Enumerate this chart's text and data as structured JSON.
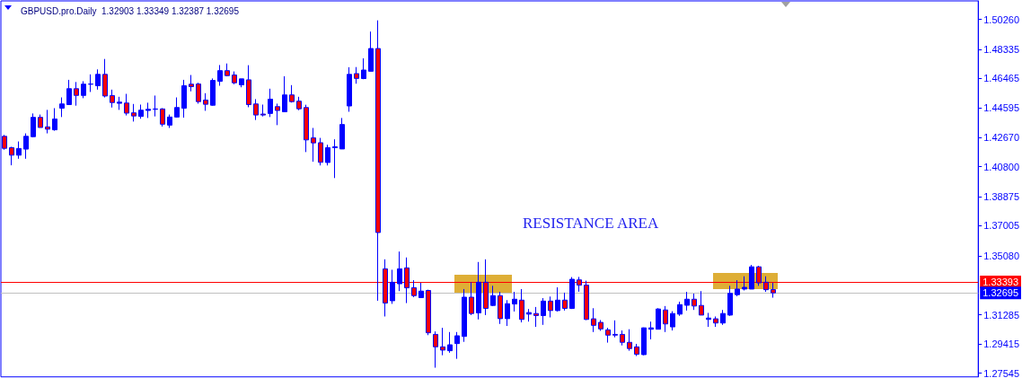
{
  "chart_data": {
    "type": "candlestick",
    "title": "GBPUSD.pro.Daily  1.32903 1.33349 1.32387 1.32695",
    "categories": [
      null,
      null,
      null,
      null,
      null,
      null,
      null,
      null,
      null,
      null,
      null,
      null,
      null,
      null,
      null,
      null,
      null,
      null,
      null,
      null,
      null,
      null,
      null,
      null,
      null,
      null,
      null,
      null,
      null,
      null,
      null,
      null,
      null,
      null,
      null,
      null,
      null,
      null,
      null,
      null,
      null,
      null,
      null,
      null,
      null,
      null,
      null,
      null,
      null,
      null,
      null,
      null,
      null,
      null,
      null,
      null,
      null,
      null,
      null,
      null,
      null,
      null,
      null,
      null,
      null,
      null,
      null,
      null,
      null,
      null,
      null,
      null,
      null,
      null,
      null,
      null,
      null,
      null,
      null,
      null,
      null,
      null,
      null,
      null,
      null,
      null,
      null,
      null,
      null,
      null,
      null,
      null,
      null,
      null,
      null,
      null,
      null,
      null,
      null,
      null,
      null,
      null,
      null,
      null,
      null,
      null,
      null,
      null,
      null,
      null,
      null,
      null,
      null,
      null,
      null,
      null,
      null,
      null,
      null,
      null,
      null,
      null,
      null,
      null,
      null,
      null,
      null,
      null,
      null,
      null,
      null,
      null,
      null,
      null,
      null,
      null
    ],
    "ohlc": [
      [
        1.4275,
        1.4284,
        1.4189,
        1.4198
      ],
      [
        1.4202,
        1.4208,
        1.4089,
        1.4154
      ],
      [
        1.4154,
        1.4242,
        1.4131,
        1.4197
      ],
      [
        1.4193,
        1.4294,
        1.4131,
        1.4275
      ],
      [
        1.4273,
        1.4422,
        1.4269,
        1.4397
      ],
      [
        1.4397,
        1.4415,
        1.4332,
        1.4332
      ],
      [
        1.4336,
        1.4445,
        1.4294,
        1.4321
      ],
      [
        1.4317,
        1.4456,
        1.4311,
        1.4386
      ],
      [
        1.4456,
        1.4525,
        1.4399,
        1.4483
      ],
      [
        1.4479,
        1.4638,
        1.4479,
        1.4581
      ],
      [
        1.4581,
        1.4624,
        1.4472,
        1.4538
      ],
      [
        1.4538,
        1.4629,
        1.452,
        1.461
      ],
      [
        1.461,
        1.4673,
        1.456,
        1.4611
      ],
      [
        1.46,
        1.4705,
        1.4575,
        1.4673
      ],
      [
        1.4673,
        1.4772,
        1.4525,
        1.4534
      ],
      [
        1.4537,
        1.4575,
        1.446,
        1.4492
      ],
      [
        1.4487,
        1.4529,
        1.4445,
        1.4495
      ],
      [
        1.4489,
        1.4548,
        1.4409,
        1.4424
      ],
      [
        1.4426,
        1.4483,
        1.437,
        1.4406
      ],
      [
        1.4403,
        1.4479,
        1.4388,
        1.4443
      ],
      [
        1.4441,
        1.4491,
        1.4393,
        1.4449
      ],
      [
        1.4449,
        1.4537,
        1.4403,
        1.4451
      ],
      [
        1.4451,
        1.4456,
        1.4338,
        1.4353
      ],
      [
        1.4347,
        1.4415,
        1.4329,
        1.4399
      ],
      [
        1.4399,
        1.4525,
        1.4395,
        1.446
      ],
      [
        1.4456,
        1.4638,
        1.4395,
        1.46
      ],
      [
        1.461,
        1.4669,
        1.4564,
        1.4594
      ],
      [
        1.4611,
        1.4619,
        1.4485,
        1.4498
      ],
      [
        1.4508,
        1.4552,
        1.4439,
        1.4481
      ],
      [
        1.4475,
        1.4647,
        1.4472,
        1.4634
      ],
      [
        1.4629,
        1.4733,
        1.46,
        1.4697
      ],
      [
        1.4697,
        1.4743,
        1.4661,
        1.4665
      ],
      [
        1.4669,
        1.4692,
        1.461,
        1.4619
      ],
      [
        1.4606,
        1.4644,
        1.459,
        1.4644
      ],
      [
        1.4638,
        1.4732,
        1.4462,
        1.4479
      ],
      [
        1.4483,
        1.4514,
        1.438,
        1.4412
      ],
      [
        1.4418,
        1.4479,
        1.4403,
        1.4412
      ],
      [
        1.4422,
        1.4581,
        1.4399,
        1.4514
      ],
      [
        1.4466,
        1.4485,
        1.4347,
        1.4441
      ],
      [
        1.4433,
        1.4661,
        1.4432,
        1.4541
      ],
      [
        1.4541,
        1.4604,
        1.4492,
        1.4498
      ],
      [
        1.4501,
        1.4529,
        1.4443,
        1.4452
      ],
      [
        1.446,
        1.4478,
        1.4174,
        1.4252
      ],
      [
        1.4265,
        1.4329,
        1.4112,
        1.4233
      ],
      [
        1.4234,
        1.4265,
        1.4088,
        1.4108
      ],
      [
        1.4107,
        1.4221,
        1.4088,
        1.4202
      ],
      [
        1.4202,
        1.4256,
        1.4007,
        1.4208
      ],
      [
        1.4194,
        1.4393,
        1.4194,
        1.4351
      ],
      [
        1.447,
        1.4719,
        1.4433,
        1.4673
      ],
      [
        1.4678,
        1.472,
        1.4613,
        1.4647
      ],
      [
        1.4646,
        1.4776,
        1.4642,
        1.4701
      ],
      [
        1.4693,
        1.4948,
        1.4693,
        1.4839
      ],
      [
        1.4839,
        1.502,
        1.3219,
        1.3657
      ],
      [
        1.3424,
        1.3485,
        1.3118,
        1.3204
      ],
      [
        1.3219,
        1.3418,
        1.3199,
        1.3338
      ],
      [
        1.3328,
        1.3535,
        1.3281,
        1.3424
      ],
      [
        1.343,
        1.3497,
        1.3204,
        1.3302
      ],
      [
        1.3303,
        1.3351,
        1.3242,
        1.3252
      ],
      [
        1.3239,
        1.3334,
        1.3239,
        1.3281
      ],
      [
        1.3285,
        1.329,
        1.2998,
        1.3013
      ],
      [
        1.3003,
        1.3022,
        1.2789,
        1.2923
      ],
      [
        1.2923,
        1.3045,
        1.2869,
        1.2902
      ],
      [
        1.2898,
        1.3018,
        1.2885,
        1.2936
      ],
      [
        1.2944,
        1.3018,
        1.2846,
        1.2994
      ],
      [
        1.299,
        1.3294,
        1.2955,
        1.3242
      ],
      [
        1.3242,
        1.3338,
        1.3127,
        1.3137
      ],
      [
        1.3141,
        1.3468,
        1.3099,
        1.3338
      ],
      [
        1.3338,
        1.3485,
        1.3127,
        1.317
      ],
      [
        1.3189,
        1.3315,
        1.3185,
        1.3252
      ],
      [
        1.3252,
        1.3276,
        1.307,
        1.3104
      ],
      [
        1.3104,
        1.3223,
        1.3057,
        1.32
      ],
      [
        1.3198,
        1.3276,
        1.315,
        1.3229
      ],
      [
        1.3223,
        1.3294,
        1.308,
        1.3099
      ],
      [
        1.3133,
        1.3166,
        1.3085,
        1.3143
      ],
      [
        1.3137,
        1.3179,
        1.3051,
        1.3124
      ],
      [
        1.3124,
        1.3236,
        1.3064,
        1.3217
      ],
      [
        1.3217,
        1.3246,
        1.3112,
        1.3156
      ],
      [
        1.3156,
        1.3305,
        1.315,
        1.3223
      ],
      [
        1.3223,
        1.3271,
        1.3156,
        1.317
      ],
      [
        1.317,
        1.3371,
        1.3166,
        1.3357
      ],
      [
        1.3353,
        1.3372,
        1.3277,
        1.3319
      ],
      [
        1.3319,
        1.3348,
        1.3095,
        1.3099
      ],
      [
        1.3103,
        1.3171,
        1.3018,
        1.3061
      ],
      [
        1.308,
        1.3095,
        1.3026,
        1.3038
      ],
      [
        1.3032,
        1.3045,
        1.295,
        1.2998
      ],
      [
        1.3003,
        1.3093,
        1.2984,
        1.2998
      ],
      [
        1.3003,
        1.3028,
        1.2932,
        1.2952
      ],
      [
        1.2952,
        1.3036,
        1.2898,
        1.2912
      ],
      [
        1.2923,
        1.2942,
        1.2864,
        1.2875
      ],
      [
        1.2873,
        1.3047,
        1.2869,
        1.3045
      ],
      [
        1.3036,
        1.3085,
        1.2971,
        1.3045
      ],
      [
        1.3036,
        1.3171,
        1.3036,
        1.3166
      ],
      [
        1.316,
        1.3185,
        1.3018,
        1.307
      ],
      [
        1.3051,
        1.3152,
        1.3028,
        1.3137
      ],
      [
        1.3133,
        1.3213,
        1.3122,
        1.3194
      ],
      [
        1.319,
        1.3276,
        1.3156,
        1.3229
      ],
      [
        1.3229,
        1.3265,
        1.316,
        1.3185
      ],
      [
        1.3189,
        1.3281,
        1.3127,
        1.3127
      ],
      [
        1.3099,
        1.3141,
        1.3051,
        1.3108
      ],
      [
        1.3103,
        1.3118,
        1.3051,
        1.3076
      ],
      [
        1.3076,
        1.316,
        1.3064,
        1.3137
      ],
      [
        1.3127,
        1.3315,
        1.3122,
        1.3267
      ],
      [
        1.3258,
        1.3351,
        1.3248,
        1.3294
      ],
      [
        1.3294,
        1.3376,
        1.3285,
        1.3305
      ],
      [
        1.3294,
        1.3449,
        1.3294,
        1.3437
      ],
      [
        1.3437,
        1.3443,
        1.3315,
        1.3334
      ],
      [
        1.3338,
        1.3376,
        1.3276,
        1.329
      ],
      [
        1.32903,
        1.33349,
        1.32387,
        1.32695
      ],
      null,
      null,
      null,
      null,
      null,
      null,
      null,
      null,
      null,
      null,
      null,
      null,
      null,
      null,
      null,
      null,
      null,
      null,
      null,
      null,
      null,
      null,
      null,
      null,
      null,
      null,
      null,
      null
    ],
    "ylim": [
      1.273,
      1.5145
    ],
    "yticks": [
      {
        "value": 1.5026,
        "label": "1.50260"
      },
      1.48335,
      1.46465,
      1.44595,
      {
        "value": 1.4267,
        "label": "1.42670"
      },
      {
        "value": 1.408,
        "label": "1.40800"
      },
      1.38875,
      1.37005,
      {
        "value": 1.3508,
        "label": "1.35080"
      },
      1.31285,
      1.29415,
      1.27545
    ],
    "ref_lines": [
      {
        "axis": "y",
        "value": 1.33393,
        "label": "1.33393",
        "color": "#ff0000"
      },
      {
        "axis": "y",
        "value": 1.32695,
        "label": "1.32695",
        "color": "#c0c0c0"
      }
    ],
    "annotations": [
      "RESISTANCE AREA"
    ],
    "tick_labels": "y",
    "grid": false
  }
}
